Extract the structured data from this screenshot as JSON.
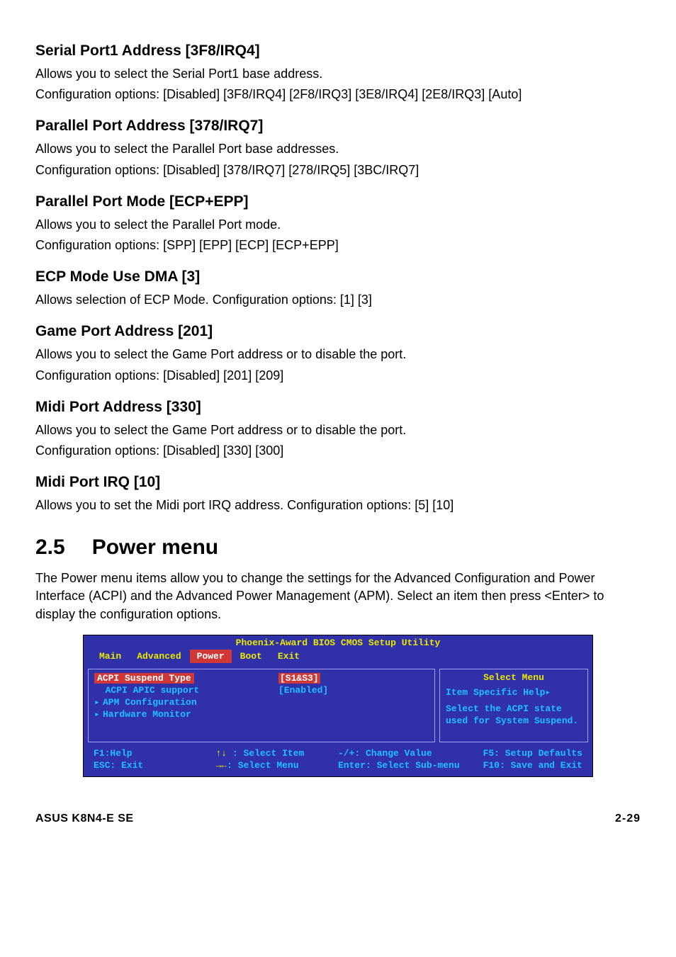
{
  "sections": {
    "serial_port1": {
      "heading": "Serial Port1 Address [3F8/IRQ4]",
      "line1": "Allows you to select the Serial Port1 base address.",
      "line2": "Configuration options: [Disabled] [3F8/IRQ4] [2F8/IRQ3] [3E8/IRQ4] [2E8/IRQ3] [Auto]"
    },
    "parallel_port_addr": {
      "heading": "Parallel Port Address [378/IRQ7]",
      "line1": "Allows you to select the Parallel Port base addresses.",
      "line2": "Configuration options: [Disabled] [378/IRQ7] [278/IRQ5] [3BC/IRQ7]"
    },
    "parallel_port_mode": {
      "heading": "Parallel Port Mode [ECP+EPP]",
      "line1": "Allows you to select the Parallel Port  mode.",
      "line2": "Configuration options: [SPP] [EPP] [ECP] [ECP+EPP]"
    },
    "ecp_mode": {
      "heading": "ECP Mode Use DMA [3]",
      "line1": "Allows selection of ECP Mode. Configuration options: [1] [3]"
    },
    "game_port": {
      "heading": "Game Port Address [201]",
      "line1": "Allows you to select the Game Port address or to disable the port.",
      "line2": "Configuration options: [Disabled] [201] [209]"
    },
    "midi_port_addr": {
      "heading": "Midi Port Address [330]",
      "line1": "Allows you to select the Game Port address or to disable the port.",
      "line2": "Configuration options: [Disabled] [330] [300]"
    },
    "midi_port_irq": {
      "heading": "Midi Port IRQ [10]",
      "line1": "Allows you to set the Midi port IRQ address. Configuration options: [5] [10]"
    }
  },
  "main_heading_num": "2.5",
  "main_heading_text": "Power menu",
  "intro": "The Power menu items allow you to change the settings for the Advanced Configuration and Power Interface (ACPI) and the Advanced Power Management (APM). Select an item then press <Enter> to display the configuration options.",
  "bios": {
    "title": "Phoenix-Award BIOS CMOS Setup Utility",
    "tabs": [
      "Main",
      "Advanced",
      "Power",
      "Boot",
      "Exit"
    ],
    "active_tab_index": 2,
    "rows": [
      {
        "label": "ACPI Suspend Type",
        "value": "[S1&S3]",
        "selected": true,
        "submenu": false
      },
      {
        "label": "ACPI APIC support",
        "value": "[Enabled]",
        "selected": false,
        "submenu": false
      },
      {
        "label": "APM Configuration",
        "value": "",
        "selected": false,
        "submenu": true
      },
      {
        "label": "Hardware Monitor",
        "value": "",
        "selected": false,
        "submenu": true
      }
    ],
    "right": {
      "title": "Select Menu",
      "help_label": "Item Specific Help▸",
      "help_text": "Select the ACPI state used for System Suspend."
    },
    "footer": {
      "c1l1": "F1:Help",
      "c1l2": "ESC: Exit",
      "c2l1": "↑↓ : Select Item",
      "c2l2": "→←: Select Menu",
      "c3l1": "-/+: Change Value",
      "c3l2": "Enter: Select Sub-menu",
      "c4l1": "F5: Setup Defaults",
      "c4l2": "F10: Save and Exit"
    },
    "colors": {
      "bg": "#3030a8",
      "accent": "#e8e800",
      "text": "#20c0ff",
      "highlight": "#d03838",
      "white": "#ffffff"
    }
  },
  "footer": {
    "left": "ASUS K8N4-E SE",
    "right": "2-29"
  }
}
